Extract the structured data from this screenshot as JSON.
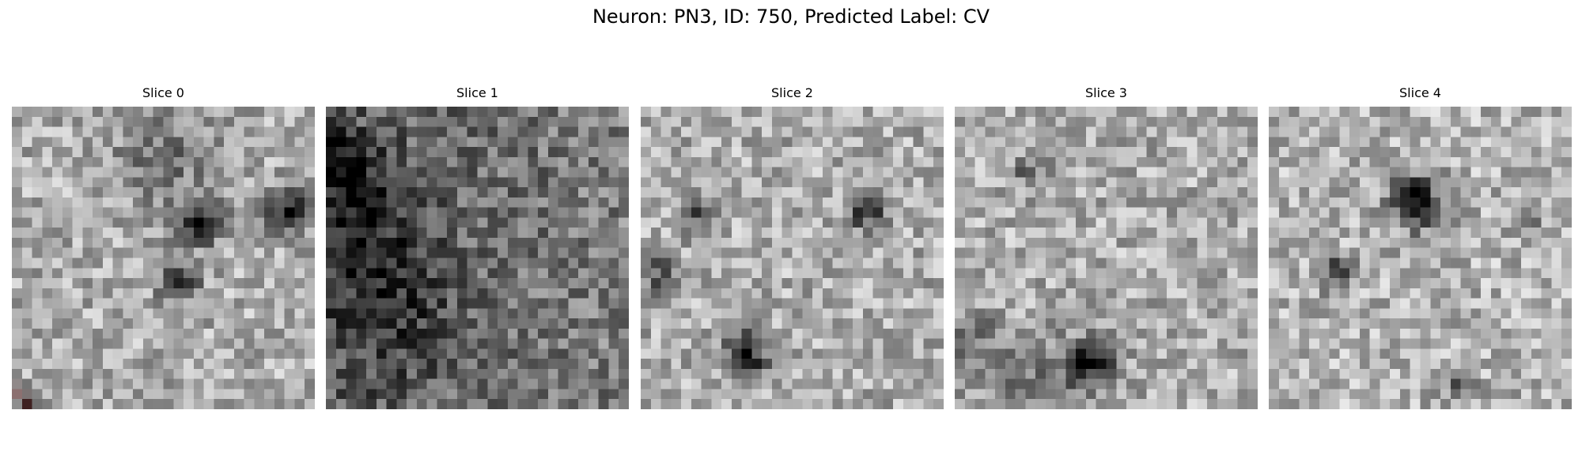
{
  "figure": {
    "title": "Neuron: PN3, ID: 750, Predicted Label: CV"
  },
  "grid_size": 30,
  "colormap": "gray",
  "panels": [
    {
      "title": "Slice 0",
      "base": 0.68,
      "blobs": [
        [
          18,
          11,
          0.5,
          1.6
        ],
        [
          16,
          17,
          0.55,
          1.3
        ],
        [
          27,
          10,
          0.55,
          1.5
        ],
        [
          1,
          29,
          0.45,
          1.0
        ],
        [
          15,
          5,
          0.2,
          4
        ]
      ],
      "gradient": 0.0,
      "marker": "red-diagonal-line"
    },
    {
      "title": "Slice 1",
      "base": 0.5,
      "blobs": [
        [
          1,
          5,
          0.35,
          2.0
        ],
        [
          3,
          10,
          0.25,
          4
        ],
        [
          6,
          20,
          0.2,
          5
        ]
      ],
      "gradient": 0.12,
      "marker": null
    },
    {
      "title": "Slice 2",
      "base": 0.68,
      "blobs": [
        [
          10,
          24,
          0.55,
          1.6
        ],
        [
          22,
          10,
          0.45,
          1.3
        ],
        [
          5,
          10,
          0.35,
          1.2
        ],
        [
          1,
          16,
          0.3,
          1.5
        ]
      ],
      "gradient": 0.0,
      "marker": null
    },
    {
      "title": "Slice 3",
      "base": 0.68,
      "blobs": [
        [
          13,
          25,
          0.55,
          1.8
        ],
        [
          8,
          27,
          0.2,
          3
        ],
        [
          1,
          23,
          0.25,
          2.5
        ],
        [
          7,
          6,
          0.3,
          1.2
        ]
      ],
      "gradient": 0.0,
      "marker": null
    },
    {
      "title": "Slice 4",
      "base": 0.7,
      "blobs": [
        [
          14,
          9,
          0.65,
          1.8
        ],
        [
          6,
          16,
          0.4,
          1.2
        ],
        [
          25,
          11,
          0.3,
          1.0
        ],
        [
          18,
          27,
          0.25,
          1.2
        ]
      ],
      "gradient": 0.0,
      "marker": null
    }
  ]
}
